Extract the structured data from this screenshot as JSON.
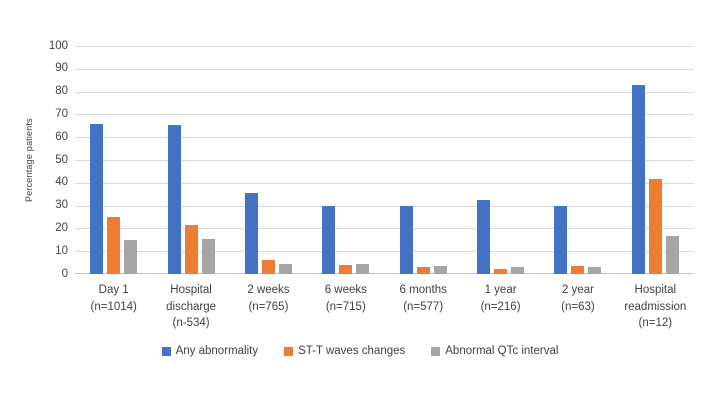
{
  "chart_data": {
    "type": "bar",
    "title": "",
    "xlabel": "",
    "ylabel": "Percentage patients",
    "ylim": [
      0,
      100
    ],
    "ytick_step": 10,
    "grid": true,
    "legend_position": "bottom",
    "categories": [
      "Day 1\n(n=1014)",
      "Hospital\ndischarge\n(n-534)",
      "2 weeks\n(n=765)",
      "6 weeks\n(n=715)",
      "6 months\n(n=577)",
      "1 year\n(n=216)",
      "2 year\n(n=63)",
      "Hospital\nreadmission\n(n=12)"
    ],
    "series": [
      {
        "name": "Any abnormality",
        "color": "#4472C4",
        "values": [
          66,
          65.5,
          35.5,
          30,
          30,
          32.5,
          30,
          83
        ]
      },
      {
        "name": "ST-T waves changes",
        "color": "#ED7D31",
        "values": [
          25,
          21.5,
          6,
          4,
          3,
          2,
          3.5,
          41.5
        ]
      },
      {
        "name": "Abnormal QTc interval",
        "color": "#A5A5A5",
        "values": [
          15,
          15.5,
          4.5,
          4.5,
          3.5,
          3,
          3,
          16.5
        ]
      }
    ]
  },
  "colors": {
    "gridline": "#d9d9d9",
    "axis_line": "#c6c6c6",
    "tick_text": "#444444",
    "label_text": "#404040"
  }
}
